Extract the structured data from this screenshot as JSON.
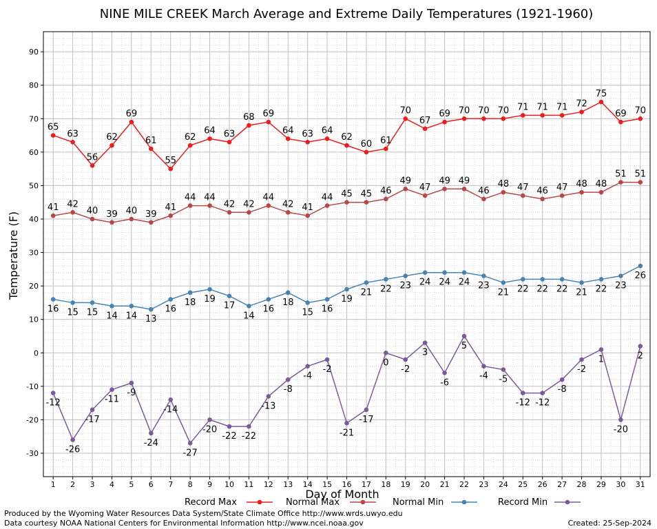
{
  "chart_data": {
    "type": "line",
    "title": "NINE MILE CREEK March Average and Extreme Daily Temperatures (1921-1960)",
    "xlabel": "Day of Month",
    "ylabel": "Temperature (F)",
    "ylim": [
      -37,
      96
    ],
    "yticks": [
      -30,
      -20,
      -10,
      0,
      10,
      20,
      30,
      40,
      50,
      60,
      70,
      80,
      90
    ],
    "x": [
      1,
      2,
      3,
      4,
      5,
      6,
      7,
      8,
      9,
      10,
      11,
      12,
      13,
      14,
      15,
      16,
      17,
      18,
      19,
      20,
      21,
      22,
      23,
      24,
      25,
      26,
      27,
      28,
      29,
      30,
      31
    ],
    "grid": true,
    "legend": "bottom",
    "series": [
      {
        "name": "Record Max",
        "color": "#ee1c1c",
        "label_pos": "above",
        "values": [
          65,
          63,
          56,
          62,
          69,
          61,
          55,
          62,
          64,
          63,
          68,
          69,
          64,
          63,
          64,
          62,
          60,
          61,
          70,
          67,
          69,
          70,
          70,
          70,
          71,
          71,
          71,
          72,
          75,
          69,
          70
        ]
      },
      {
        "name": "Normal Max",
        "color": "#b94747",
        "label_pos": "above",
        "values": [
          41,
          42,
          40,
          39,
          40,
          39,
          41,
          44,
          44,
          42,
          42,
          44,
          42,
          41,
          44,
          45,
          45,
          46,
          49,
          47,
          49,
          49,
          46,
          48,
          47,
          46,
          47,
          48,
          48,
          51,
          51
        ]
      },
      {
        "name": "Normal Min",
        "color": "#4682b4",
        "label_pos": "below",
        "values": [
          16,
          15,
          15,
          14,
          14,
          13,
          16,
          18,
          19,
          17,
          14,
          16,
          18,
          15,
          16,
          19,
          21,
          22,
          23,
          24,
          24,
          24,
          23,
          21,
          22,
          22,
          22,
          21,
          22,
          23,
          26
        ]
      },
      {
        "name": "Record Min",
        "color": "#7b5a9b",
        "label_pos": "below",
        "values": [
          -12,
          -26,
          -17,
          -11,
          -9,
          -24,
          -14,
          -27,
          -20,
          -22,
          -22,
          -13,
          -8,
          -4,
          -2,
          -21,
          -17,
          0,
          -2,
          3,
          -6,
          5,
          -4,
          -5,
          -12,
          -12,
          -8,
          -2,
          1,
          -20,
          2
        ]
      }
    ]
  },
  "footer": {
    "produced_by": "Produced by the Wyoming Water Resources Data System/State Climate Office http://www.wrds.uwyo.edu",
    "courtesy": "Data courtesy NOAA National Centers for Environmental Information http://www.ncei.noaa.gov",
    "created": "Created:  25-Sep-2024"
  }
}
